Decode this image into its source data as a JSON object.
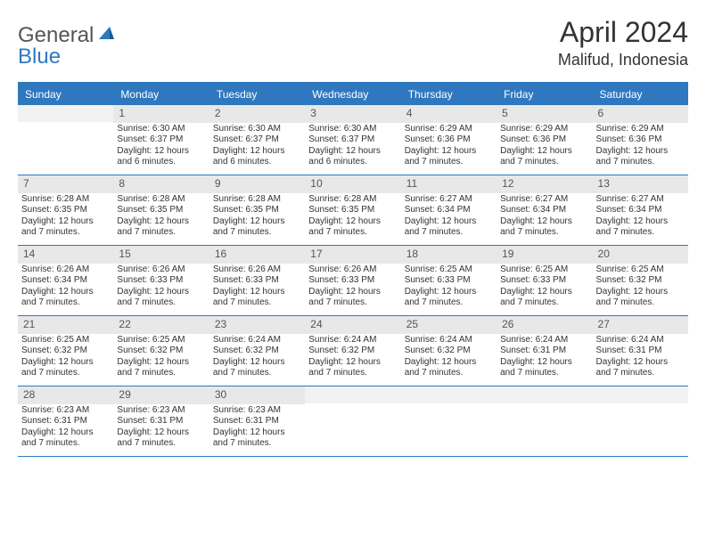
{
  "logo": {
    "text1": "General",
    "text2": "Blue",
    "color1": "#555555",
    "color2": "#2f78bf"
  },
  "title": "April 2024",
  "location": "Malifud, Indonesia",
  "colors": {
    "header_bg": "#2f78bf",
    "header_text": "#ffffff",
    "daynum_bg": "#e8e8e8",
    "empty_bg": "#f2f2f2",
    "text": "#333333",
    "border": "#2f78bf"
  },
  "dow": [
    "Sunday",
    "Monday",
    "Tuesday",
    "Wednesday",
    "Thursday",
    "Friday",
    "Saturday"
  ],
  "weeks": [
    [
      {
        "n": "",
        "sr": "",
        "ss": "",
        "dl": ""
      },
      {
        "n": "1",
        "sr": "Sunrise: 6:30 AM",
        "ss": "Sunset: 6:37 PM",
        "dl": "Daylight: 12 hours and 6 minutes."
      },
      {
        "n": "2",
        "sr": "Sunrise: 6:30 AM",
        "ss": "Sunset: 6:37 PM",
        "dl": "Daylight: 12 hours and 6 minutes."
      },
      {
        "n": "3",
        "sr": "Sunrise: 6:30 AM",
        "ss": "Sunset: 6:37 PM",
        "dl": "Daylight: 12 hours and 6 minutes."
      },
      {
        "n": "4",
        "sr": "Sunrise: 6:29 AM",
        "ss": "Sunset: 6:36 PM",
        "dl": "Daylight: 12 hours and 7 minutes."
      },
      {
        "n": "5",
        "sr": "Sunrise: 6:29 AM",
        "ss": "Sunset: 6:36 PM",
        "dl": "Daylight: 12 hours and 7 minutes."
      },
      {
        "n": "6",
        "sr": "Sunrise: 6:29 AM",
        "ss": "Sunset: 6:36 PM",
        "dl": "Daylight: 12 hours and 7 minutes."
      }
    ],
    [
      {
        "n": "7",
        "sr": "Sunrise: 6:28 AM",
        "ss": "Sunset: 6:35 PM",
        "dl": "Daylight: 12 hours and 7 minutes."
      },
      {
        "n": "8",
        "sr": "Sunrise: 6:28 AM",
        "ss": "Sunset: 6:35 PM",
        "dl": "Daylight: 12 hours and 7 minutes."
      },
      {
        "n": "9",
        "sr": "Sunrise: 6:28 AM",
        "ss": "Sunset: 6:35 PM",
        "dl": "Daylight: 12 hours and 7 minutes."
      },
      {
        "n": "10",
        "sr": "Sunrise: 6:28 AM",
        "ss": "Sunset: 6:35 PM",
        "dl": "Daylight: 12 hours and 7 minutes."
      },
      {
        "n": "11",
        "sr": "Sunrise: 6:27 AM",
        "ss": "Sunset: 6:34 PM",
        "dl": "Daylight: 12 hours and 7 minutes."
      },
      {
        "n": "12",
        "sr": "Sunrise: 6:27 AM",
        "ss": "Sunset: 6:34 PM",
        "dl": "Daylight: 12 hours and 7 minutes."
      },
      {
        "n": "13",
        "sr": "Sunrise: 6:27 AM",
        "ss": "Sunset: 6:34 PM",
        "dl": "Daylight: 12 hours and 7 minutes."
      }
    ],
    [
      {
        "n": "14",
        "sr": "Sunrise: 6:26 AM",
        "ss": "Sunset: 6:34 PM",
        "dl": "Daylight: 12 hours and 7 minutes."
      },
      {
        "n": "15",
        "sr": "Sunrise: 6:26 AM",
        "ss": "Sunset: 6:33 PM",
        "dl": "Daylight: 12 hours and 7 minutes."
      },
      {
        "n": "16",
        "sr": "Sunrise: 6:26 AM",
        "ss": "Sunset: 6:33 PM",
        "dl": "Daylight: 12 hours and 7 minutes."
      },
      {
        "n": "17",
        "sr": "Sunrise: 6:26 AM",
        "ss": "Sunset: 6:33 PM",
        "dl": "Daylight: 12 hours and 7 minutes."
      },
      {
        "n": "18",
        "sr": "Sunrise: 6:25 AM",
        "ss": "Sunset: 6:33 PM",
        "dl": "Daylight: 12 hours and 7 minutes."
      },
      {
        "n": "19",
        "sr": "Sunrise: 6:25 AM",
        "ss": "Sunset: 6:33 PM",
        "dl": "Daylight: 12 hours and 7 minutes."
      },
      {
        "n": "20",
        "sr": "Sunrise: 6:25 AM",
        "ss": "Sunset: 6:32 PM",
        "dl": "Daylight: 12 hours and 7 minutes."
      }
    ],
    [
      {
        "n": "21",
        "sr": "Sunrise: 6:25 AM",
        "ss": "Sunset: 6:32 PM",
        "dl": "Daylight: 12 hours and 7 minutes."
      },
      {
        "n": "22",
        "sr": "Sunrise: 6:25 AM",
        "ss": "Sunset: 6:32 PM",
        "dl": "Daylight: 12 hours and 7 minutes."
      },
      {
        "n": "23",
        "sr": "Sunrise: 6:24 AM",
        "ss": "Sunset: 6:32 PM",
        "dl": "Daylight: 12 hours and 7 minutes."
      },
      {
        "n": "24",
        "sr": "Sunrise: 6:24 AM",
        "ss": "Sunset: 6:32 PM",
        "dl": "Daylight: 12 hours and 7 minutes."
      },
      {
        "n": "25",
        "sr": "Sunrise: 6:24 AM",
        "ss": "Sunset: 6:32 PM",
        "dl": "Daylight: 12 hours and 7 minutes."
      },
      {
        "n": "26",
        "sr": "Sunrise: 6:24 AM",
        "ss": "Sunset: 6:31 PM",
        "dl": "Daylight: 12 hours and 7 minutes."
      },
      {
        "n": "27",
        "sr": "Sunrise: 6:24 AM",
        "ss": "Sunset: 6:31 PM",
        "dl": "Daylight: 12 hours and 7 minutes."
      }
    ],
    [
      {
        "n": "28",
        "sr": "Sunrise: 6:23 AM",
        "ss": "Sunset: 6:31 PM",
        "dl": "Daylight: 12 hours and 7 minutes."
      },
      {
        "n": "29",
        "sr": "Sunrise: 6:23 AM",
        "ss": "Sunset: 6:31 PM",
        "dl": "Daylight: 12 hours and 7 minutes."
      },
      {
        "n": "30",
        "sr": "Sunrise: 6:23 AM",
        "ss": "Sunset: 6:31 PM",
        "dl": "Daylight: 12 hours and 7 minutes."
      },
      {
        "n": "",
        "sr": "",
        "ss": "",
        "dl": ""
      },
      {
        "n": "",
        "sr": "",
        "ss": "",
        "dl": ""
      },
      {
        "n": "",
        "sr": "",
        "ss": "",
        "dl": ""
      },
      {
        "n": "",
        "sr": "",
        "ss": "",
        "dl": ""
      }
    ]
  ]
}
